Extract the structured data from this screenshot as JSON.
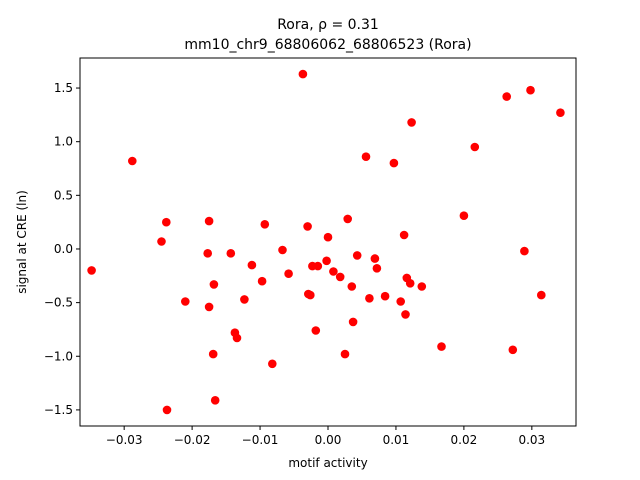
{
  "chart_data": {
    "type": "scatter",
    "title": "Rora, ρ = 0.31",
    "subtitle": "mm10_chr9_68806062_68806523 (Rora)",
    "xlabel": "motif activity",
    "ylabel": "signal at CRE (ln)",
    "xlim": [
      -0.0365,
      0.0365
    ],
    "ylim": [
      -1.65,
      1.78
    ],
    "xticks": [
      -0.03,
      -0.02,
      -0.01,
      0.0,
      0.01,
      0.02,
      0.03
    ],
    "xtick_labels": [
      "−0.03",
      "−0.02",
      "−0.01",
      "0.00",
      "0.01",
      "0.02",
      "0.03"
    ],
    "yticks": [
      -1.5,
      -1.0,
      -0.5,
      0.0,
      0.5,
      1.0,
      1.5
    ],
    "ytick_labels": [
      "−1.5",
      "−1.0",
      "−0.5",
      "0.0",
      "0.5",
      "1.0",
      "1.5"
    ],
    "grid": false,
    "marker_color": "#ff0000",
    "points": [
      {
        "x": -0.0348,
        "y": -0.2
      },
      {
        "x": -0.0288,
        "y": 0.82
      },
      {
        "x": -0.0245,
        "y": 0.07
      },
      {
        "x": -0.0238,
        "y": 0.25
      },
      {
        "x": -0.0237,
        "y": -1.5
      },
      {
        "x": -0.021,
        "y": -0.49
      },
      {
        "x": -0.0175,
        "y": 0.26
      },
      {
        "x": -0.0177,
        "y": -0.04
      },
      {
        "x": -0.0175,
        "y": -0.54
      },
      {
        "x": -0.0168,
        "y": -0.33
      },
      {
        "x": -0.0169,
        "y": -0.98
      },
      {
        "x": -0.0166,
        "y": -1.41
      },
      {
        "x": -0.0143,
        "y": -0.04
      },
      {
        "x": -0.0137,
        "y": -0.78
      },
      {
        "x": -0.0134,
        "y": -0.83
      },
      {
        "x": -0.0123,
        "y": -0.47
      },
      {
        "x": -0.0112,
        "y": -0.15
      },
      {
        "x": -0.0097,
        "y": -0.3
      },
      {
        "x": -0.0093,
        "y": 0.23
      },
      {
        "x": -0.0082,
        "y": -1.07
      },
      {
        "x": -0.0067,
        "y": -0.01
      },
      {
        "x": -0.0058,
        "y": -0.23
      },
      {
        "x": -0.0037,
        "y": 1.63
      },
      {
        "x": -0.003,
        "y": 0.21
      },
      {
        "x": -0.0029,
        "y": -0.42
      },
      {
        "x": -0.0026,
        "y": -0.43
      },
      {
        "x": -0.0023,
        "y": -0.16
      },
      {
        "x": -0.0018,
        "y": -0.76
      },
      {
        "x": -0.0015,
        "y": -0.16
      },
      {
        "x": -0.0002,
        "y": -0.11
      },
      {
        "x": 0.0,
        "y": 0.11
      },
      {
        "x": 0.0008,
        "y": -0.21
      },
      {
        "x": 0.0018,
        "y": -0.26
      },
      {
        "x": 0.0025,
        "y": -0.98
      },
      {
        "x": 0.0029,
        "y": 0.28
      },
      {
        "x": 0.0035,
        "y": -0.35
      },
      {
        "x": 0.0037,
        "y": -0.68
      },
      {
        "x": 0.0043,
        "y": -0.06
      },
      {
        "x": 0.0056,
        "y": 0.86
      },
      {
        "x": 0.0061,
        "y": -0.46
      },
      {
        "x": 0.0069,
        "y": -0.09
      },
      {
        "x": 0.0072,
        "y": -0.18
      },
      {
        "x": 0.0084,
        "y": -0.44
      },
      {
        "x": 0.0097,
        "y": 0.8
      },
      {
        "x": 0.0107,
        "y": -0.49
      },
      {
        "x": 0.0112,
        "y": 0.13
      },
      {
        "x": 0.0114,
        "y": -0.61
      },
      {
        "x": 0.0116,
        "y": -0.27
      },
      {
        "x": 0.0121,
        "y": -0.32
      },
      {
        "x": 0.0123,
        "y": 1.18
      },
      {
        "x": 0.0138,
        "y": -0.35
      },
      {
        "x": 0.0167,
        "y": -0.91
      },
      {
        "x": 0.02,
        "y": 0.31
      },
      {
        "x": 0.0216,
        "y": 0.95
      },
      {
        "x": 0.0263,
        "y": 1.42
      },
      {
        "x": 0.0272,
        "y": -0.94
      },
      {
        "x": 0.0289,
        "y": -0.02
      },
      {
        "x": 0.0298,
        "y": 1.48
      },
      {
        "x": 0.0314,
        "y": -0.43
      },
      {
        "x": 0.0342,
        "y": 1.27
      }
    ]
  }
}
